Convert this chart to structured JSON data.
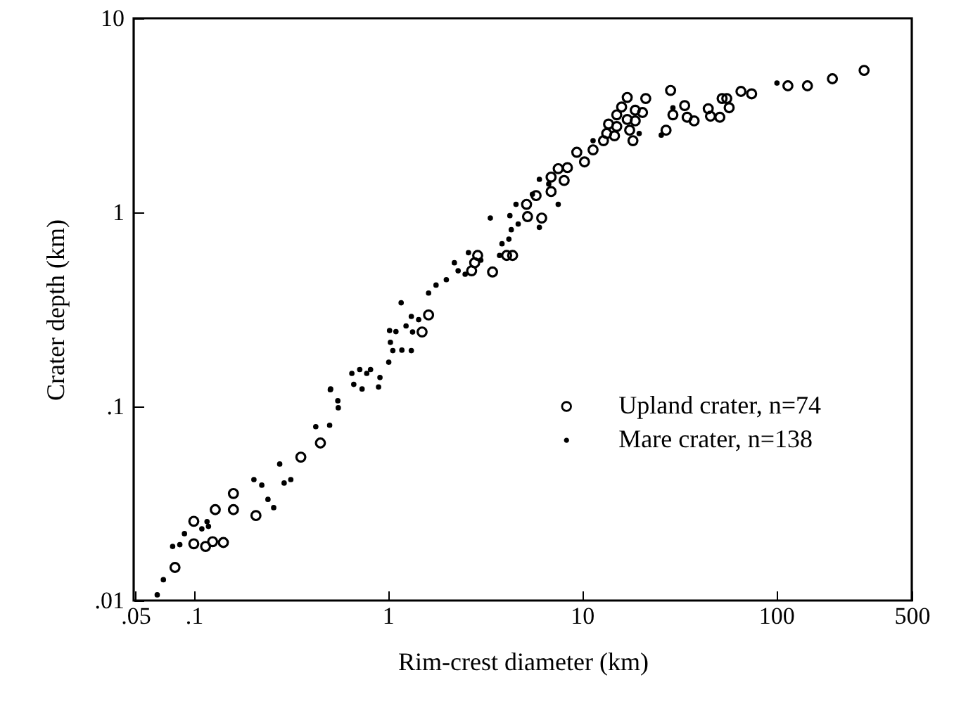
{
  "chart_data": {
    "type": "scatter",
    "xlabel": "Rim-crest diameter (km)",
    "ylabel": "Crater depth (km)",
    "log": "xy",
    "grid": false,
    "legend": "right",
    "marker": "circle",
    "xlim": [
      0.049,
      500
    ],
    "ylim": [
      0.01,
      10
    ],
    "xticks": [
      {
        "value": 0.05,
        "label": ".05"
      },
      {
        "value": 0.1,
        "label": ".1"
      },
      1,
      10,
      100,
      500
    ],
    "yticks": [
      {
        "value": 0.01,
        "label": ".01"
      },
      {
        "value": 0.1,
        "label": ".1"
      },
      1,
      10
    ],
    "series": [
      {
        "name": "Upland crater, n=74",
        "color": "#000000",
        "x": [
          0.08,
          0.1,
          0.1,
          0.115,
          0.125,
          0.142,
          0.129,
          0.16,
          0.16,
          0.209,
          0.356,
          0.449,
          1.5,
          1.62,
          2.7,
          2.8,
          2.9,
          3.46,
          4.09,
          4.39,
          5.24,
          6.2,
          5.18,
          5.8,
          6.93,
          6.93,
          7.54,
          8.09,
          8.41,
          9.4,
          10.3,
          11.4,
          12.9,
          13.4,
          13.7,
          14.7,
          15.1,
          15.1,
          16,
          17.1,
          17.1,
          17.6,
          18.3,
          18.8,
          18.8,
          20.5,
          21.3,
          28.6,
          27.1,
          29.4,
          33.8,
          34.8,
          37.8,
          44.7,
          45.9,
          51.3,
          52.7,
          55.7,
          57.3,
          65.9,
          74.8,
          115,
          145,
          195,
          284
        ],
        "values": [
          0.0148,
          0.0256,
          0.0196,
          0.019,
          0.0201,
          0.0199,
          0.0294,
          0.0294,
          0.0356,
          0.0274,
          0.0548,
          0.0648,
          0.242,
          0.296,
          0.5,
          0.55,
          0.6,
          0.493,
          0.6,
          0.6,
          0.951,
          0.935,
          1.1,
          1.22,
          1.28,
          1.52,
          1.68,
          1.46,
          1.7,
          2.04,
          1.82,
          2.1,
          2.34,
          2.55,
          2.85,
          2.48,
          2.77,
          3.18,
          3.49,
          3.91,
          3.01,
          2.65,
          2.34,
          3.36,
          2.96,
          3.27,
          3.86,
          4.25,
          2.65,
          3.18,
          3.55,
          3.09,
          2.96,
          3.42,
          3.13,
          3.09,
          3.86,
          3.86,
          3.46,
          4.2,
          4.08,
          4.49,
          4.49,
          4.88,
          5.39
        ]
      },
      {
        "name": "Mare crater, n=138",
        "color": "#000000",
        "x": [
          0.0648,
          0.0697,
          0.0778,
          0.0847,
          0.0895,
          0.11,
          0.117,
          0.119,
          0.204,
          0.224,
          0.241,
          0.258,
          0.277,
          0.292,
          0.316,
          0.425,
          0.501,
          0.507,
          0.555,
          0.505,
          0.552,
          0.652,
          0.667,
          0.716,
          0.736,
          0.778,
          0.814,
          0.895,
          0.91,
          1.01,
          1.06,
          1.18,
          1.32,
          1.03,
          1.02,
          1.1,
          1.24,
          1.34,
          1.44,
          1.32,
          1.17,
          1.62,
          1.77,
          2.0,
          2.2,
          2.3,
          2.5,
          2.6,
          3.01,
          3.37,
          3.76,
          3.87,
          4.2,
          4.32,
          4.57,
          4.69,
          5.55,
          6.03,
          6.03,
          6.74,
          7.54,
          11.4,
          19.7,
          25.6,
          29.4,
          101,
          4.25
        ],
        "values": [
          0.0107,
          0.0128,
          0.019,
          0.0194,
          0.0221,
          0.0234,
          0.0255,
          0.0241,
          0.042,
          0.0393,
          0.0332,
          0.0301,
          0.0505,
          0.0403,
          0.042,
          0.0787,
          0.08,
          0.123,
          0.0984,
          0.122,
          0.107,
          0.148,
          0.13,
          0.155,
          0.123,
          0.148,
          0.155,
          0.126,
          0.141,
          0.169,
          0.194,
          0.195,
          0.194,
          0.214,
          0.246,
          0.243,
          0.26,
          0.242,
          0.28,
          0.291,
          0.342,
          0.384,
          0.422,
          0.45,
          0.55,
          0.5,
          0.48,
          0.62,
          0.567,
          0.935,
          0.6,
          0.689,
          0.728,
          0.814,
          1.1,
          0.871,
          1.24,
          0.837,
          1.48,
          1.4,
          1.1,
          2.34,
          2.55,
          2.5,
          3.46,
          4.64,
          0.962
        ]
      }
    ]
  }
}
